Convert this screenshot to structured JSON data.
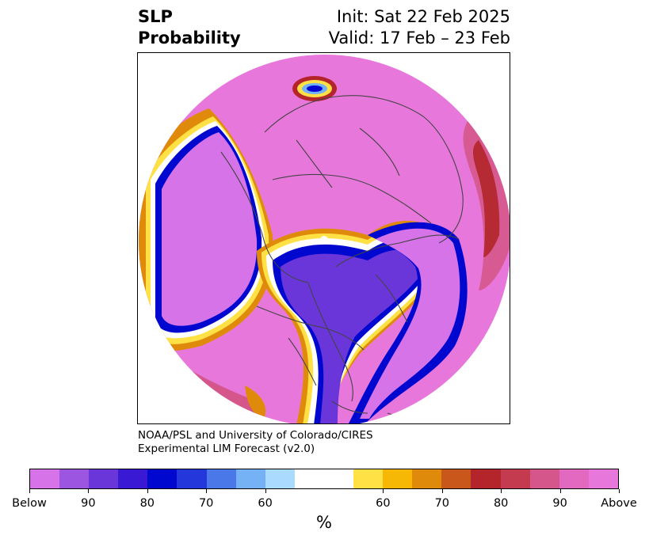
{
  "title": {
    "left_line1": "SLP",
    "left_line2": "Probability",
    "right_line1": "Init: Sat 22 Feb 2025",
    "right_line2": "Valid: 17 Feb – 23 Feb"
  },
  "credit": {
    "line1": "NOAA/PSL and University of Colorado/CIRES",
    "line2": "Experimental LIM Forecast (v2.0)"
  },
  "colorbar": {
    "unit": "%",
    "colors": [
      "#d673e8",
      "#9c55e0",
      "#6a36d9",
      "#3a19d4",
      "#0008d0",
      "#2437da",
      "#4a78e8",
      "#74b2f5",
      "#abdaff",
      "#ffffff",
      "#ffffff",
      "#ffe146",
      "#f6b705",
      "#e08a0c",
      "#c9561a",
      "#b3252a",
      "#c43a4f",
      "#d5568a",
      "#e268c0",
      "#e877dc"
    ],
    "ticks": [
      {
        "label": "Below",
        "index": 0
      },
      {
        "label": "90",
        "index": 2
      },
      {
        "label": "80",
        "index": 4
      },
      {
        "label": "70",
        "index": 6
      },
      {
        "label": "60",
        "index": 8
      },
      {
        "label": "60",
        "index": 12
      },
      {
        "label": "70",
        "index": 14
      },
      {
        "label": "80",
        "index": 16
      },
      {
        "label": "90",
        "index": 18
      },
      {
        "label": "Above",
        "index": 20
      }
    ]
  },
  "map_colors": {
    "above_high": "#e877dc",
    "above_mid": "#d5568a",
    "above_low": "#b3252a",
    "orange": "#e08a0c",
    "yellow": "#ffe146",
    "below_high": "#d673e8",
    "below_mid": "#6a36d9",
    "below_low": "#0008d0",
    "light_blue": "#74b2f5",
    "coast": "#444444"
  }
}
